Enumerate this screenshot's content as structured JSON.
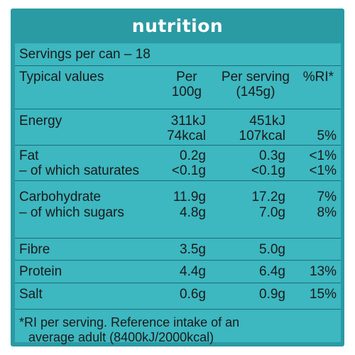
{
  "title": "nutrition",
  "servings": "Servings per can – 18",
  "columns": {
    "label": "Typical values",
    "per100_l1": "Per",
    "per100_l2": "100g",
    "serving_l1": "Per serving",
    "serving_l2": "(145g)",
    "ri": "%RI*"
  },
  "rows": {
    "energy": {
      "label": "Energy",
      "per100_kj": "311kJ",
      "per100_kcal": "74kcal",
      "serving_kj": "451kJ",
      "serving_kcal": "107kcal",
      "ri": "5%"
    },
    "fat": {
      "label": "Fat",
      "per100": "0.2g",
      "serving": "0.3g",
      "ri": "<1%"
    },
    "saturates": {
      "label": "– of which saturates",
      "per100": "<0.1g",
      "serving": "<0.1g",
      "ri": "<1%"
    },
    "carbohydrate": {
      "label": "Carbohydrate",
      "per100": "11.9g",
      "serving": "17.2g",
      "ri": "7%"
    },
    "sugars": {
      "label": "– of which sugars",
      "per100": "4.8g",
      "serving": "7.0g",
      "ri": "8%"
    },
    "fibre": {
      "label": "Fibre",
      "per100": "3.5g",
      "serving": "5.0g"
    },
    "protein": {
      "label": "Protein",
      "per100": "4.4g",
      "serving": "6.4g",
      "ri": "13%"
    },
    "salt": {
      "label": "Salt",
      "per100": "0.6g",
      "serving": "0.9g",
      "ri": "15%"
    }
  },
  "footnote_l1": "*RI per serving. Reference intake of an",
  "footnote_l2": "average adult (8400kJ/2000kcal)"
}
